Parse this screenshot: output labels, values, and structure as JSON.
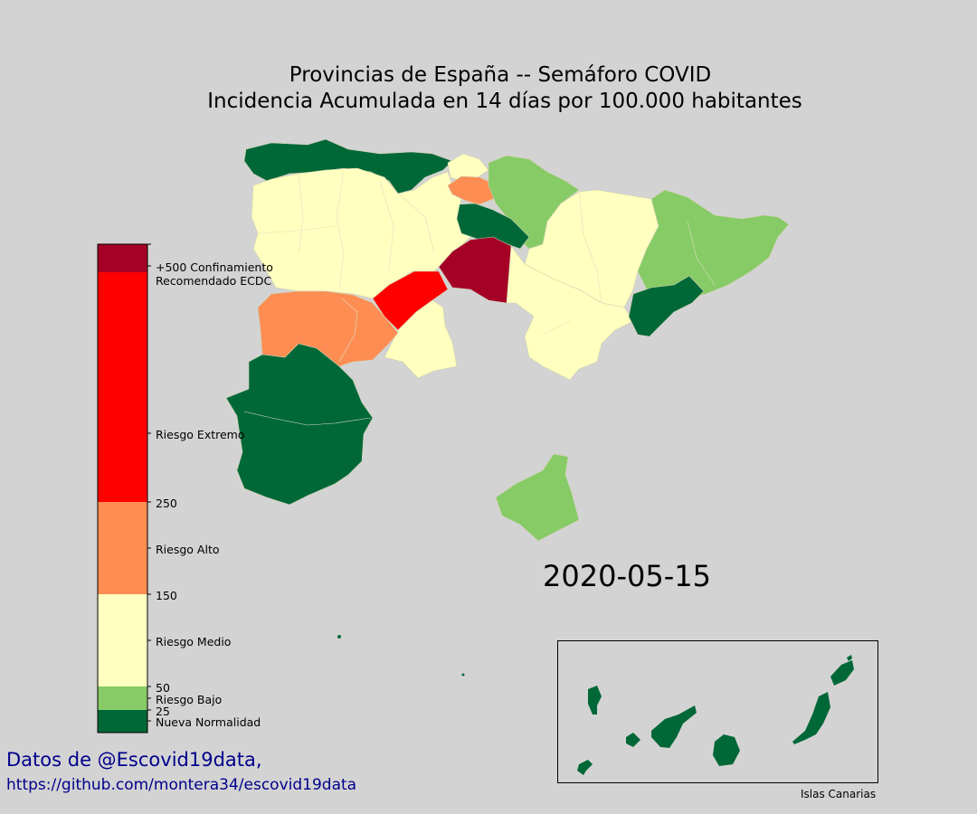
{
  "title": {
    "line1": "Provincias de España -- Semáforo COVID",
    "line2": "Incidencia Acumulada en 14 días por 100.000 habitantes"
  },
  "date": "2020-05-15",
  "credits": {
    "line1": "Datos de @Escovid19data,",
    "line2": "https://github.com/montera34/escovid19data"
  },
  "canarias_label": "Islas Canarias",
  "colors": {
    "background": "#d3d3d3",
    "nueva_normalidad": "#006837",
    "riesgo_bajo": "#86cb66",
    "riesgo_medio": "#ffffc0",
    "riesgo_alto": "#fd8d52",
    "riesgo_extremo": "#ff0000",
    "confinamiento": "#a50026"
  },
  "legend": {
    "bands": [
      {
        "key": "nueva_normalidad",
        "color": "#006837"
      },
      {
        "key": "riesgo_bajo",
        "color": "#86cb66"
      },
      {
        "key": "riesgo_medio",
        "color": "#ffffc0"
      },
      {
        "key": "riesgo_alto",
        "color": "#fd8d52"
      },
      {
        "key": "riesgo_extremo",
        "color": "#ff0000"
      },
      {
        "key": "confinamiento",
        "color": "#a50026"
      }
    ],
    "labels": {
      "confinamiento_1": "+500 Confinamiento",
      "confinamiento_2": "Recomendado ECDC",
      "extremo": "Riesgo Extremo",
      "t250": "250",
      "alto": "Riesgo Alto",
      "t150": "150",
      "medio": "Riesgo Medio",
      "t50": "50",
      "bajo": "Riesgo Bajo",
      "t25": "25",
      "normalidad": "Nueva Normalidad"
    }
  }
}
